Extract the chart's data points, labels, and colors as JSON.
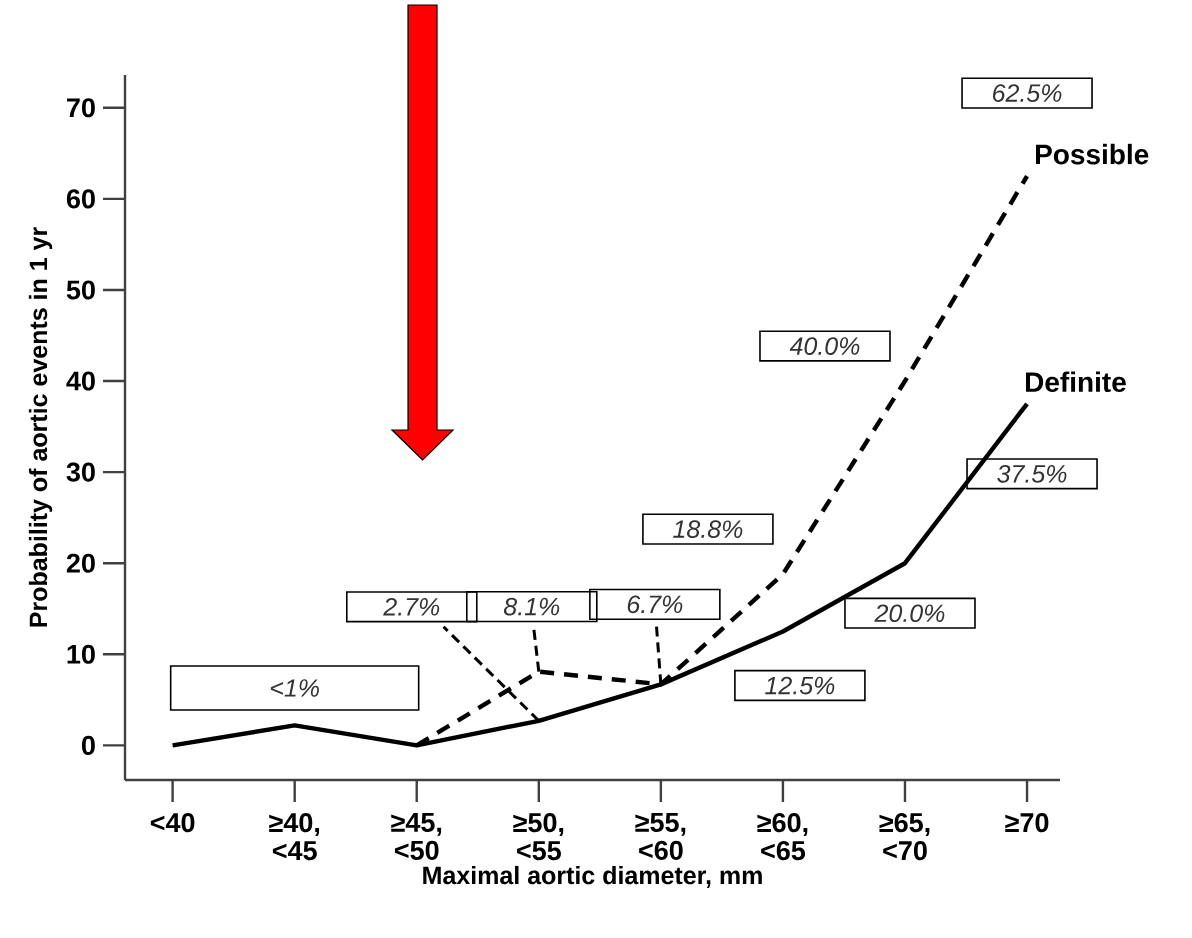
{
  "chart_data": {
    "type": "line",
    "xlabel": "Maximal aortic diameter, mm",
    "ylabel": "Probability of aortic events in 1 yr",
    "categories": [
      "<40",
      "≥40, <45",
      "≥45, <50",
      "≥50, <55",
      "≥55, <60",
      "≥60, <65",
      "≥65, <70",
      "≥70"
    ],
    "series": [
      {
        "name": "Possible",
        "color": "#000000",
        "line_style": "dashed",
        "values": [
          null,
          null,
          0,
          8.1,
          6.7,
          18.8,
          40.0,
          62.5
        ],
        "value_labels": [
          null,
          null,
          null,
          "8.1%",
          null,
          "18.8%",
          "40.0%",
          "62.5%"
        ]
      },
      {
        "name": "Definite",
        "color": "#000000",
        "line_style": "solid",
        "values": [
          0,
          2.2,
          0,
          2.7,
          6.7,
          12.5,
          20.0,
          37.5
        ],
        "value_labels": [
          null,
          null,
          null,
          "2.7%",
          "6.7%",
          "12.5%",
          "20.0%",
          "37.5%"
        ]
      }
    ],
    "annotations": [
      "<1%"
    ],
    "ylim": [
      -3.8,
      73.6
    ],
    "yticks": [
      0,
      10,
      20,
      30,
      40,
      50,
      60,
      70
    ],
    "grid": false,
    "marker": "none"
  }
}
